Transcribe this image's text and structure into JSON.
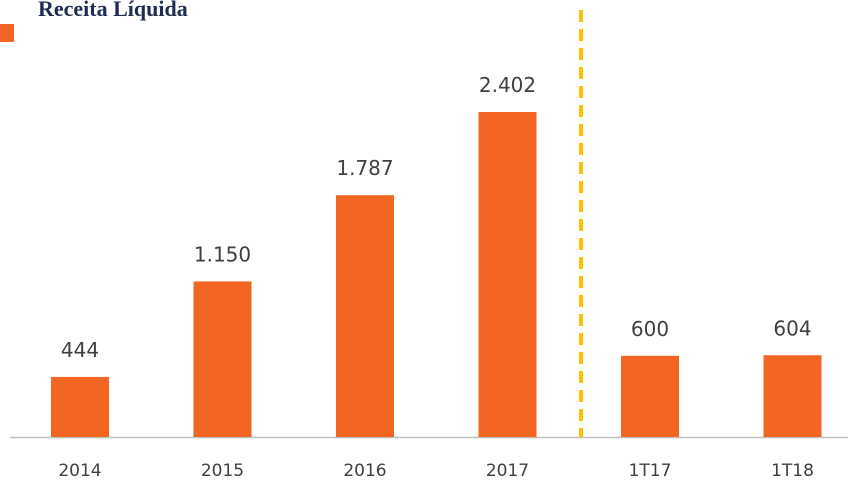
{
  "chart_data": {
    "type": "bar",
    "title": "Receita Líquida",
    "categories": [
      "2014",
      "2015",
      "2016",
      "2017",
      "1T17",
      "1T18"
    ],
    "values": [
      444,
      1150,
      1787,
      2402,
      600,
      604
    ],
    "value_labels": [
      "444",
      "1.150",
      "1.787",
      "2.402",
      "600",
      "604"
    ],
    "color": "#f26522"
  }
}
